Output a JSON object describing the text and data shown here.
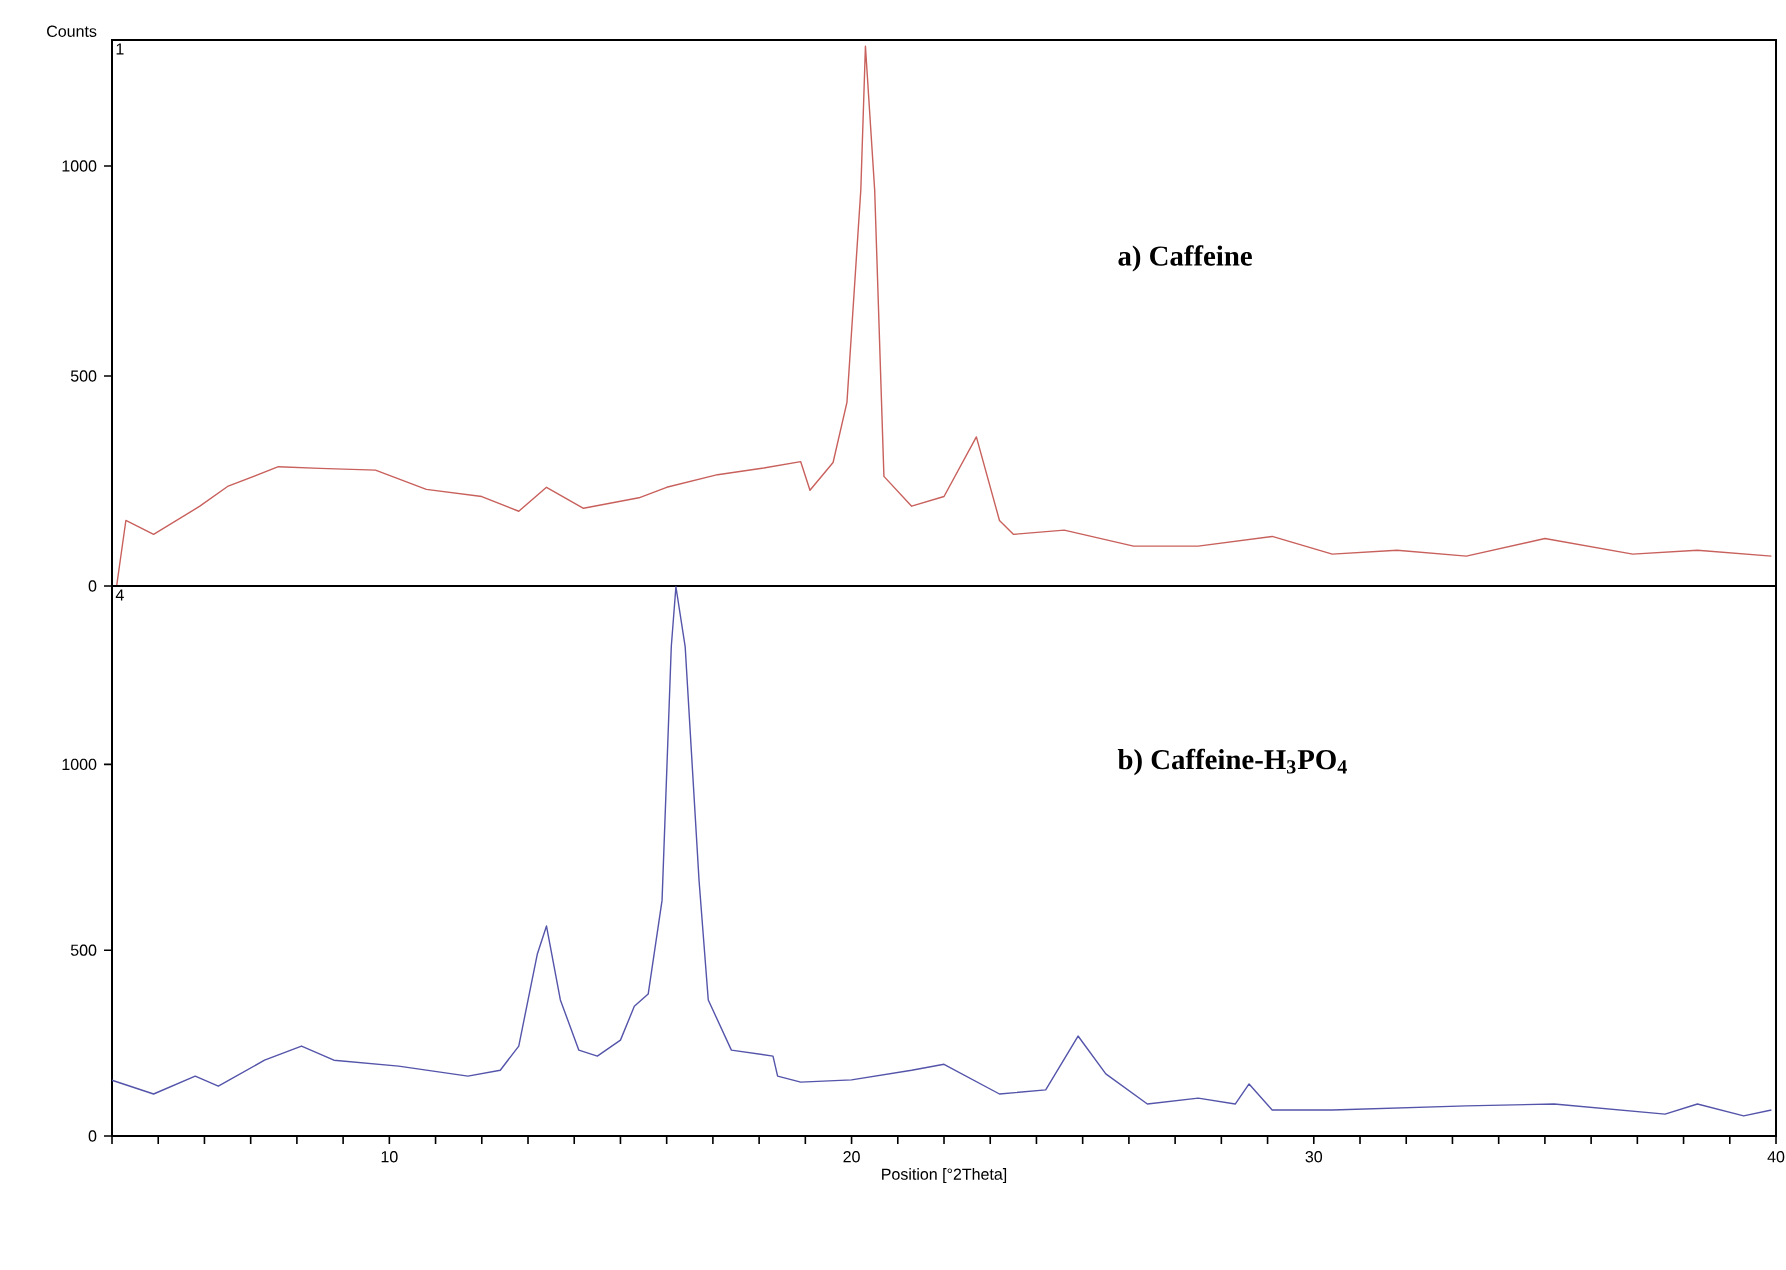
{
  "chart_data": [
    {
      "type": "line",
      "title": "a) Caffeine",
      "ylabel": "Counts",
      "annotations": [
        "1"
      ],
      "xlim": [
        4,
        40
      ],
      "ylim": [
        0,
        1300
      ],
      "yticks": [
        0,
        500,
        1000
      ],
      "tick_labels": "y",
      "series": [
        {
          "color": "#c8605c",
          "x": [
            4.1,
            4.3,
            4.9,
            5.9,
            6.5,
            7.6,
            8.5,
            9.7,
            10.8,
            12.0,
            12.8,
            13.4,
            14.2,
            15.4,
            16.0,
            17.1,
            18.1,
            18.9,
            19.1,
            19.6,
            19.9,
            20.2,
            20.3,
            20.5,
            20.7,
            21.3,
            22.0,
            22.7,
            23.2,
            23.5,
            24.6,
            26.1,
            27.5,
            29.1,
            30.4,
            31.8,
            33.3,
            35.0,
            36.9,
            38.3,
            39.9
          ],
          "values": [
            0,
            156,
            123,
            190,
            237,
            284,
            280,
            276,
            230,
            213,
            178,
            235,
            185,
            210,
            235,
            265,
            281,
            296,
            228,
            294,
            437,
            943,
            1285,
            943,
            261,
            190,
            213,
            355,
            156,
            123,
            133,
            95,
            95,
            118,
            76,
            85,
            71,
            113,
            76,
            85,
            71
          ]
        }
      ]
    },
    {
      "type": "line",
      "title": "b) Caffeine-H$_{3}$PO$_{4}$",
      "xlabel": "Position [°2Theta]",
      "annotations": [
        "4"
      ],
      "xlim": [
        4,
        40
      ],
      "ylim": [
        0,
        1480
      ],
      "yticks": [
        0,
        500,
        1000
      ],
      "xticks": [
        {
          "value": 4,
          "label": null
        },
        {
          "value": 5,
          "label": null
        },
        {
          "value": 6,
          "label": null
        },
        {
          "value": 7,
          "label": null
        },
        {
          "value": 8,
          "label": null
        },
        {
          "value": 9,
          "label": null
        },
        10,
        {
          "value": 11,
          "label": null
        },
        {
          "value": 12,
          "label": null
        },
        {
          "value": 13,
          "label": null
        },
        {
          "value": 14,
          "label": null
        },
        {
          "value": 15,
          "label": null
        },
        {
          "value": 16,
          "label": null
        },
        {
          "value": 17,
          "label": null
        },
        {
          "value": 18,
          "label": null
        },
        {
          "value": 19,
          "label": null
        },
        20,
        {
          "value": 21,
          "label": null
        },
        {
          "value": 22,
          "label": null
        },
        {
          "value": 23,
          "label": null
        },
        {
          "value": 24,
          "label": null
        },
        {
          "value": 25,
          "label": null
        },
        {
          "value": 26,
          "label": null
        },
        {
          "value": 27,
          "label": null
        },
        {
          "value": 28,
          "label": null
        },
        {
          "value": 29,
          "label": null
        },
        30,
        {
          "value": 31,
          "label": null
        },
        {
          "value": 32,
          "label": null
        },
        {
          "value": 33,
          "label": null
        },
        {
          "value": 34,
          "label": null
        },
        {
          "value": 35,
          "label": null
        },
        {
          "value": 36,
          "label": null
        },
        {
          "value": 37,
          "label": null
        },
        {
          "value": 38,
          "label": null
        },
        {
          "value": 39,
          "label": null
        },
        40
      ],
      "series": [
        {
          "color": "#5454aa",
          "x": [
            4.0,
            4.9,
            5.8,
            6.3,
            7.3,
            8.1,
            8.8,
            10.2,
            11.7,
            12.4,
            12.8,
            13.2,
            13.4,
            13.7,
            14.1,
            14.5,
            15.0,
            15.3,
            15.6,
            15.9,
            16.1,
            16.2,
            16.4,
            16.7,
            16.9,
            17.4,
            18.3,
            18.4,
            18.9,
            20.0,
            21.3,
            22.0,
            23.2,
            24.2,
            24.9,
            25.5,
            26.4,
            27.5,
            28.3,
            28.6,
            29.1,
            30.4,
            33.3,
            35.2,
            37.6,
            38.3,
            39.3,
            39.9
          ],
          "values": [
            150,
            113,
            161,
            134,
            204,
            242,
            204,
            188,
            161,
            177,
            242,
            489,
            565,
            366,
            231,
            215,
            258,
            349,
            382,
            634,
            1317,
            1478,
            1317,
            688,
            366,
            231,
            215,
            161,
            145,
            151,
            177,
            193,
            113,
            124,
            269,
            167,
            86,
            102,
            86,
            140,
            70,
            70,
            81,
            86,
            59,
            86,
            54,
            70
          ]
        }
      ]
    }
  ]
}
